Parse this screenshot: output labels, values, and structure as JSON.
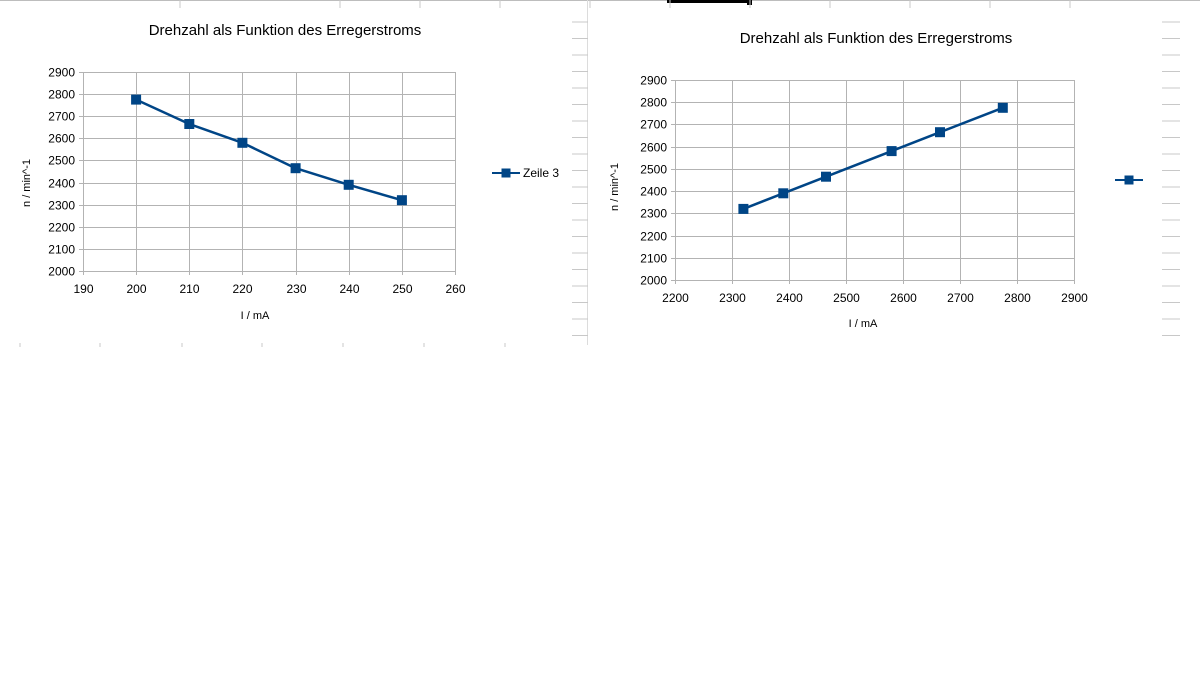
{
  "colors": {
    "series": "#004586",
    "grid": "#b3b3b3",
    "axis": "#b3b3b3",
    "sheet_lines": "#c8c8c8"
  },
  "chart_data": [
    {
      "type": "line",
      "title": "Drehzahl als Funktion des Erregerstroms",
      "xlabel": "I / mA",
      "ylabel": "n / min^-1",
      "xlim": [
        190,
        260
      ],
      "ylim": [
        2000,
        2900
      ],
      "xticks": [
        190,
        200,
        210,
        220,
        230,
        240,
        250,
        260
      ],
      "yticks": [
        2000,
        2100,
        2200,
        2300,
        2400,
        2500,
        2600,
        2700,
        2800,
        2900
      ],
      "grid": true,
      "legend_position": "right",
      "series": [
        {
          "name": "Zeile 3",
          "x": [
            200,
            210,
            220,
            230,
            240,
            250
          ],
          "y": [
            2775,
            2665,
            2580,
            2465,
            2390,
            2320
          ]
        }
      ]
    },
    {
      "type": "line",
      "title": "Drehzahl als Funktion des Erregerstroms",
      "xlabel": "I / mA",
      "ylabel": "n / min^-1",
      "xlim": [
        2200,
        2900
      ],
      "ylim": [
        2000,
        2900
      ],
      "xticks": [
        2200,
        2300,
        2400,
        2500,
        2600,
        2700,
        2800,
        2900
      ],
      "yticks": [
        2000,
        2100,
        2200,
        2300,
        2400,
        2500,
        2600,
        2700,
        2800,
        2900
      ],
      "grid": true,
      "legend_position": "right",
      "series": [
        {
          "name": "",
          "x": [
            2320,
            2390,
            2465,
            2580,
            2665,
            2775
          ],
          "y": [
            2320,
            2390,
            2465,
            2580,
            2665,
            2775
          ]
        }
      ]
    }
  ]
}
